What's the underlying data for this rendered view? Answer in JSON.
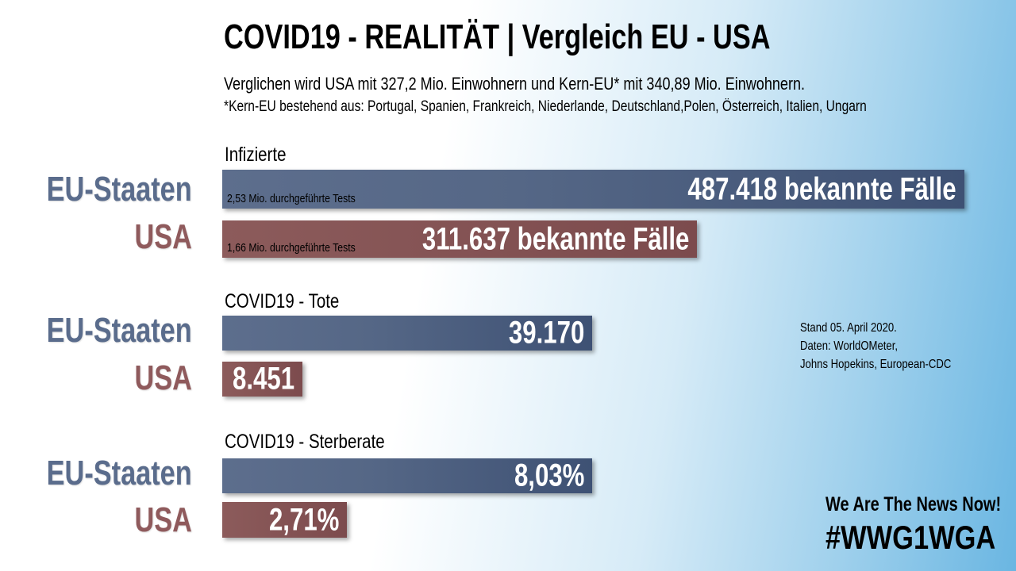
{
  "header": {
    "title": "COVID19 - REALITÄT  |  Vergleich EU - USA",
    "subtitle": "Verglichen wird USA mit 327,2 Mio. Einwohnern und Kern-EU* mit 340,89 Mio. Einwohnern.",
    "footnote": "*Kern-EU bestehend aus: Portugal, Spanien, Frankreich, Niederlande, Deutschland,Polen, Österreich, Italien, Ungarn"
  },
  "labels": {
    "eu": "EU-Staaten",
    "us": "USA"
  },
  "colors": {
    "eu": "#556786",
    "us": "#84525a"
  },
  "source": {
    "line1": "Stand 05. April 2020.",
    "line2": "Daten: WorldOMeter,",
    "line3": "Johns Hopekins, European-CDC"
  },
  "branding": {
    "line1": "We Are The News Now!",
    "line2": "#WWG1WGA"
  },
  "chart_data": [
    {
      "type": "bar",
      "title": "Infizierte",
      "categories": [
        "EU-Staaten",
        "USA"
      ],
      "values": [
        487418,
        311637
      ],
      "value_labels": [
        "487.418 bekannte Fälle",
        "311.637 bekannte Fälle"
      ],
      "notes": [
        "2,53 Mio. durchgeführte Tests",
        "1,66 Mio. durchgeführte Tests"
      ]
    },
    {
      "type": "bar",
      "title": "COVID19 - Tote",
      "categories": [
        "EU-Staaten",
        "USA"
      ],
      "values": [
        39170,
        8451
      ],
      "value_labels": [
        "39.170",
        "8.451"
      ]
    },
    {
      "type": "bar",
      "title": "COVID19 - Sterberate",
      "categories": [
        "EU-Staaten",
        "USA"
      ],
      "values": [
        8.03,
        2.71
      ],
      "value_labels": [
        "8,03%",
        "2,71%"
      ]
    }
  ]
}
